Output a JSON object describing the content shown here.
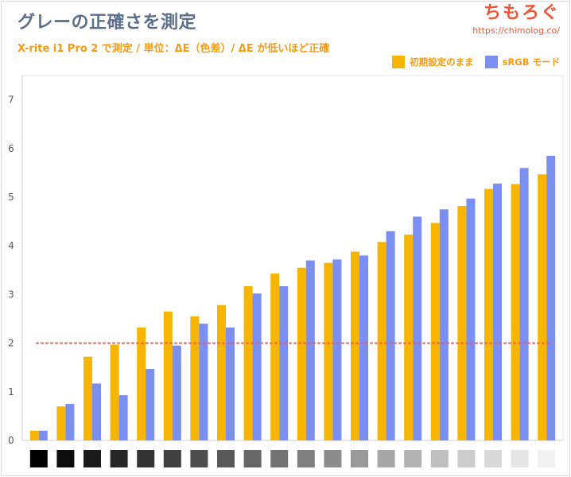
{
  "header": {
    "title": "グレーの正確さを測定",
    "subtitle": "X-rite i1 Pro 2 で測定 / 単位：ΔE（色差）/ ΔE が低いほど正確",
    "brand_name": "ちもろぐ",
    "brand_url": "https://chimolog.co/"
  },
  "colors": {
    "series1": "#f7b500",
    "series2": "#7b8ff0",
    "reference_line": "#ef5a5a"
  },
  "chart_data": {
    "type": "bar",
    "title": "グレーの正確さを測定",
    "subtitle": "X-rite i1 Pro 2 で測定 / 単位：ΔE（色差）/ ΔE が低いほど正確",
    "ylim": [
      0,
      7.5
    ],
    "yticks": [
      0,
      1,
      2,
      3,
      4,
      5,
      6,
      7
    ],
    "grid": false,
    "legend_position": "top-right",
    "reference_line": 2,
    "categories": [
      "#000000",
      "#0c0c0c",
      "#1a1a1a",
      "#262626",
      "#333333",
      "#404040",
      "#4d4d4d",
      "#595959",
      "#666666",
      "#737373",
      "#808080",
      "#8c8c8c",
      "#999999",
      "#a6a6a6",
      "#b3b3b3",
      "#bfbfbf",
      "#cccccc",
      "#d9d9d9",
      "#e6e6e6",
      "#f2f2f2"
    ],
    "series": [
      {
        "name": "初期設定のまま",
        "values": [
          0.2,
          0.7,
          1.72,
          1.97,
          2.32,
          2.65,
          2.55,
          2.78,
          3.17,
          3.43,
          3.55,
          3.65,
          3.88,
          4.08,
          4.23,
          4.47,
          4.82,
          5.17,
          5.27,
          5.47
        ]
      },
      {
        "name": "sRGB モード",
        "values": [
          0.2,
          0.75,
          1.17,
          0.93,
          1.47,
          1.95,
          2.4,
          2.32,
          3.02,
          3.17,
          3.7,
          3.72,
          3.8,
          4.3,
          4.6,
          4.75,
          4.97,
          5.28,
          5.6,
          5.85
        ]
      }
    ]
  }
}
